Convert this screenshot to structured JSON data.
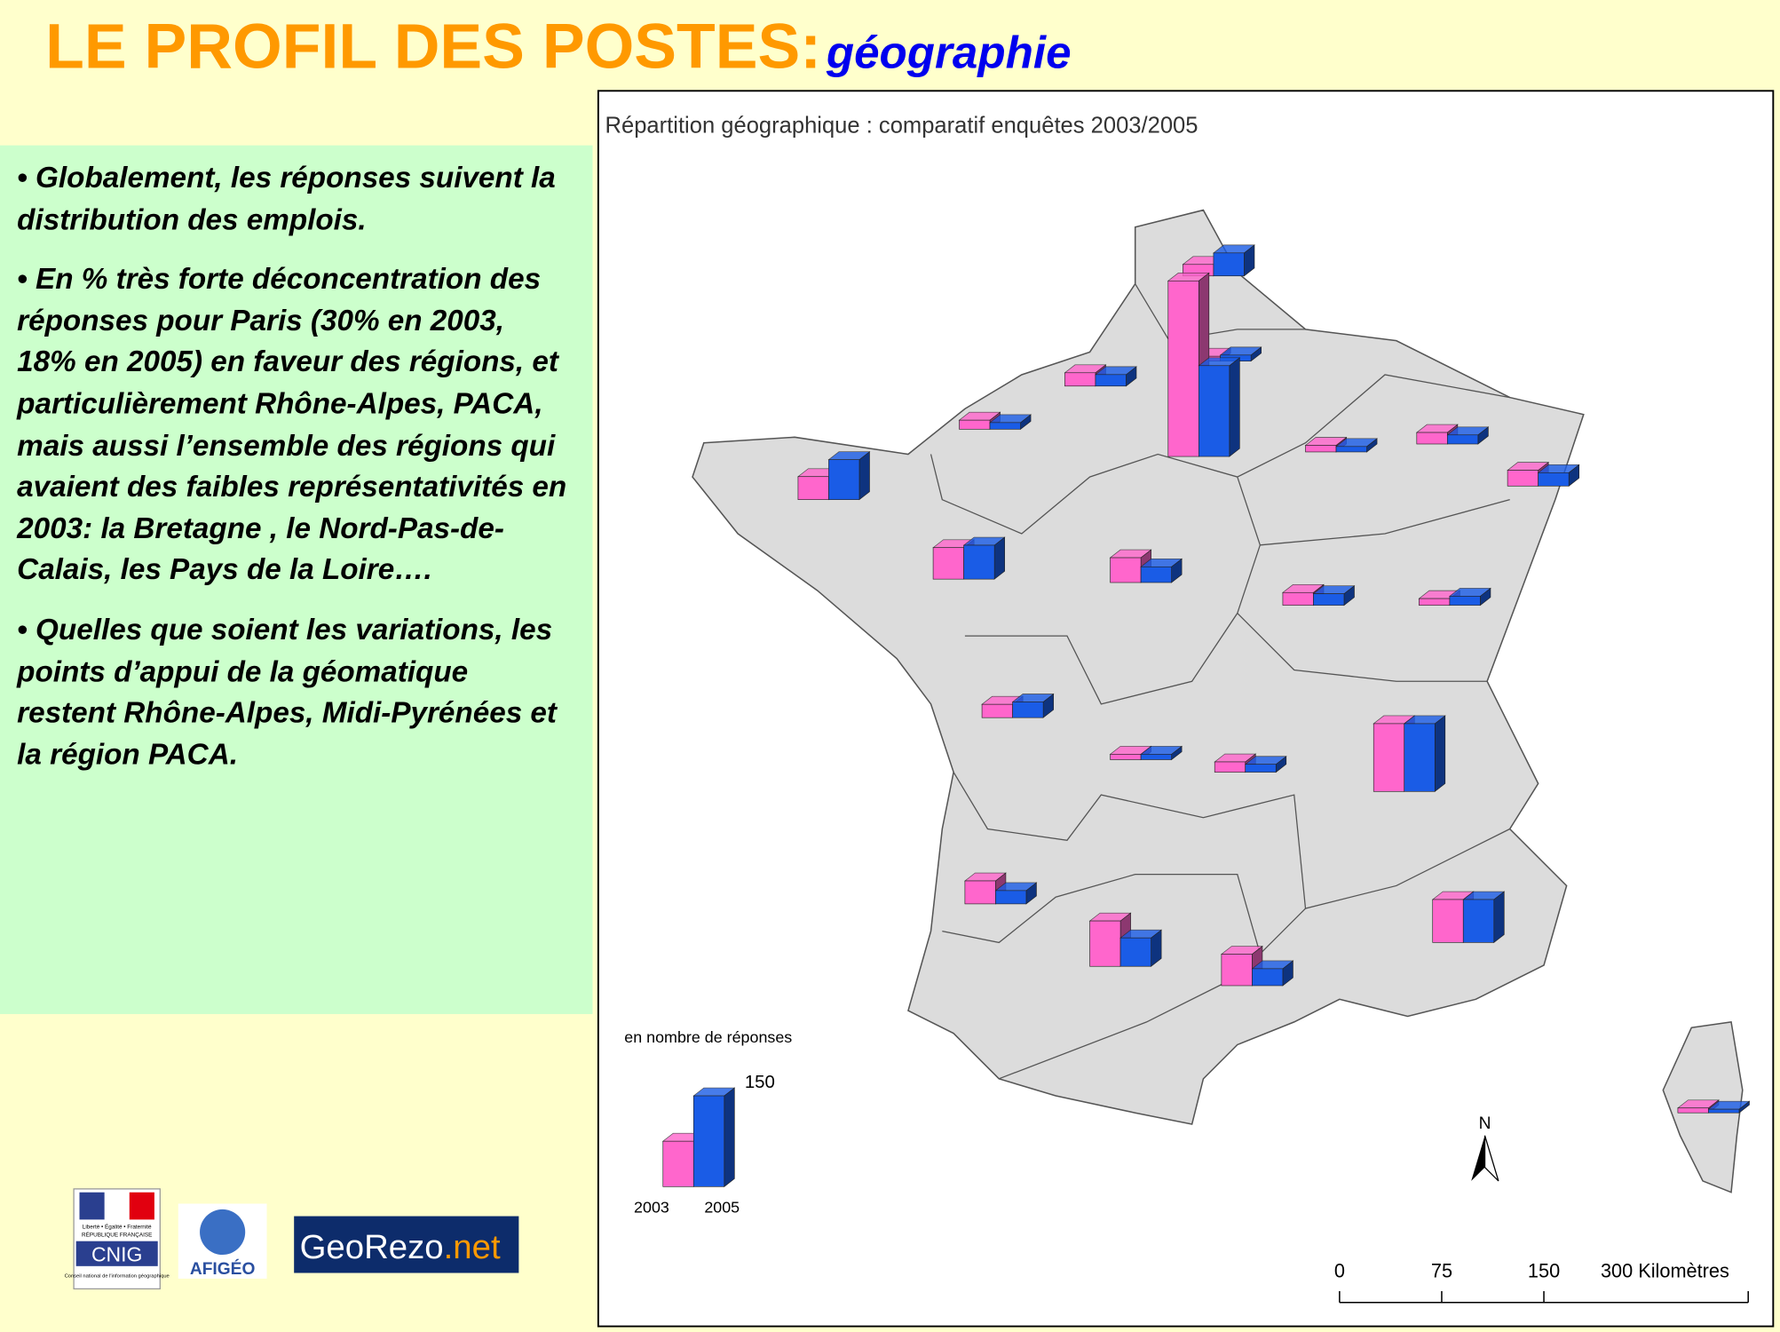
{
  "header": {
    "title": "LE PROFIL DES POSTES:",
    "subtitle": "géographie"
  },
  "panel": {
    "bullets": [
      "• Globalement, les réponses suivent la distribution des emplois.",
      "• En % très forte déconcentration des réponses pour Paris (30% en 2003, 18% en 2005) en faveur des régions, et particulièrement Rhône-Alpes, PACA, mais aussi l’ensemble des régions qui avaient des faibles représentativités en 2003: la Bretagne , le Nord-Pas-de-Calais, les Pays de la Loire….",
      "• Quelles que soient les variations, les points d’appui de la géomatique restent Rhône-Alpes, Midi-Pyrénées et la région PACA."
    ]
  },
  "logos": {
    "cnig": [
      "Liberté • Égalité • Fraternité",
      "RÉPUBLIQUE FRANÇAISE",
      "CNIG",
      "Conseil national de l'information géographique"
    ],
    "afigeo": "AFIGÉO",
    "georezo": "GeoRezo",
    "georezo_suffix": ".net"
  },
  "map": {
    "title": "Répartition géographique : comparatif enquêtes 2003/2005",
    "series": [
      {
        "name": "2003",
        "color": "#ff66cc"
      },
      {
        "name": "2005",
        "color": "#1a5ce6"
      }
    ],
    "regions": [
      {
        "values": [
          19,
          38
        ]
      },
      {
        "values": [
          8,
          10
        ]
      },
      {
        "values": [
          290,
          150
        ]
      },
      {
        "values": [
          22,
          19
        ]
      },
      {
        "values": [
          15,
          11
        ]
      },
      {
        "values": [
          38,
          66
        ]
      },
      {
        "values": [
          52,
          56
        ]
      },
      {
        "values": [
          41,
          26
        ]
      },
      {
        "values": [
          11,
          9
        ]
      },
      {
        "values": [
          19,
          15
        ]
      },
      {
        "values": [
          26,
          22
        ]
      },
      {
        "values": [
          21,
          19
        ]
      },
      {
        "values": [
          11,
          15
        ]
      },
      {
        "values": [
          22,
          26
        ]
      },
      {
        "values": [
          9,
          9
        ]
      },
      {
        "values": [
          17,
          13
        ]
      },
      {
        "values": [
          112,
          112
        ]
      },
      {
        "values": [
          38,
          22
        ]
      },
      {
        "values": [
          75,
          47
        ]
      },
      {
        "values": [
          52,
          28
        ]
      },
      {
        "values": [
          71,
          71
        ]
      },
      {
        "values": [
          8,
          6
        ]
      }
    ],
    "legend": {
      "title": "en nombre de réponses",
      "values": [
        75,
        150
      ]
    },
    "north": "N",
    "scale": {
      "ticks": [
        0,
        75,
        150,
        {
          "value": 300,
          "label": "300 Kilomètres"
        }
      ]
    }
  }
}
